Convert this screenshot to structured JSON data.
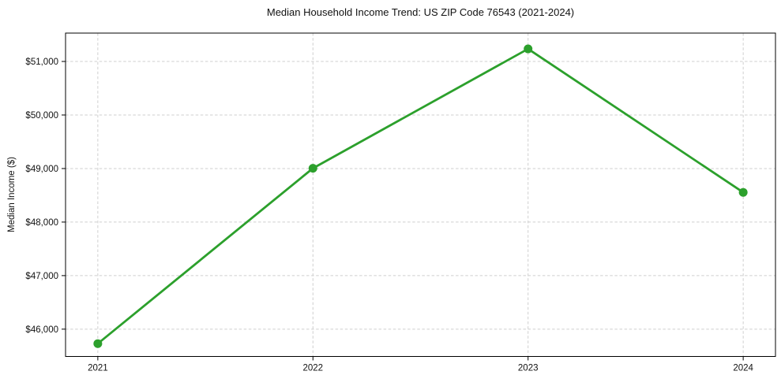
{
  "chart_data": {
    "type": "line",
    "title": "Median Household Income Trend: US ZIP Code 76543 (2021-2024)",
    "xlabel": "",
    "ylabel": "Median Income ($)",
    "x": [
      2021,
      2022,
      2023,
      2024
    ],
    "x_tick_labels": [
      "2021",
      "2022",
      "2023",
      "2024"
    ],
    "y_ticks": [
      46000,
      47000,
      48000,
      49000,
      50000,
      51000
    ],
    "y_tick_labels": [
      "$46,000",
      "$47,000",
      "$48,000",
      "$49,000",
      "$50,000",
      "$51,000"
    ],
    "series": [
      {
        "name": "Median Household Income",
        "values": [
          45730,
          49005,
          51235,
          48555
        ]
      }
    ],
    "xlim": [
      2020.85,
      2024.15
    ],
    "ylim": [
      45490,
      51530
    ],
    "grid": true,
    "legend": "none",
    "line_color": "#2ca02c",
    "marker": "circle",
    "grid_color": "#cfcfcf"
  }
}
